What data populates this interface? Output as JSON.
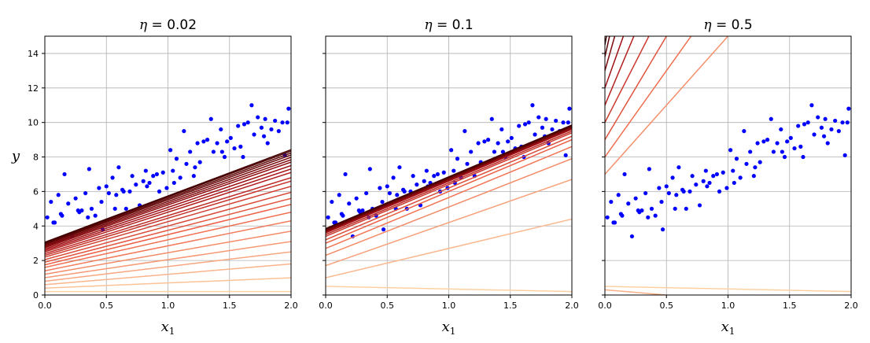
{
  "chart_data": [
    {
      "type": "scatter+line",
      "eta": 0.02,
      "title_symbol": "η",
      "title_value": "0.02",
      "xlabel_main": "x",
      "xlabel_sub": "1",
      "ylabel": "y",
      "xlim": [
        0,
        2
      ],
      "ylim": [
        0,
        15
      ],
      "xticks": [
        "0.0",
        "0.5",
        "1.0",
        "1.5",
        "2.0"
      ],
      "yticks": [
        "0",
        "2",
        "4",
        "6",
        "8",
        "10",
        "12",
        "14"
      ],
      "show_yticklabels": true,
      "lines": [
        {
          "intercept": 0.2,
          "slope": 0.0
        },
        {
          "intercept": 0.4,
          "slope": 0.3
        },
        {
          "intercept": 0.6,
          "slope": 0.6
        },
        {
          "intercept": 0.8,
          "slope": 0.85
        },
        {
          "intercept": 1.0,
          "slope": 1.05
        },
        {
          "intercept": 1.2,
          "slope": 1.25
        },
        {
          "intercept": 1.4,
          "slope": 1.45
        },
        {
          "intercept": 1.6,
          "slope": 1.6
        },
        {
          "intercept": 1.75,
          "slope": 1.75
        },
        {
          "intercept": 1.9,
          "slope": 1.85
        },
        {
          "intercept": 2.05,
          "slope": 1.95
        },
        {
          "intercept": 2.2,
          "slope": 2.05
        },
        {
          "intercept": 2.3,
          "slope": 2.15
        },
        {
          "intercept": 2.4,
          "slope": 2.2
        },
        {
          "intercept": 2.5,
          "slope": 2.3
        },
        {
          "intercept": 2.58,
          "slope": 2.36
        },
        {
          "intercept": 2.66,
          "slope": 2.42
        },
        {
          "intercept": 2.74,
          "slope": 2.48
        },
        {
          "intercept": 2.8,
          "slope": 2.52
        },
        {
          "intercept": 2.86,
          "slope": 2.56
        },
        {
          "intercept": 2.92,
          "slope": 2.6
        },
        {
          "intercept": 2.97,
          "slope": 2.63
        },
        {
          "intercept": 3.02,
          "slope": 2.66
        },
        {
          "intercept": 3.06,
          "slope": 2.68
        }
      ]
    },
    {
      "type": "scatter+line",
      "eta": 0.1,
      "title_symbol": "η",
      "title_value": "0.1",
      "xlabel_main": "x",
      "xlabel_sub": "1",
      "ylabel": "",
      "xlim": [
        0,
        2
      ],
      "ylim": [
        0,
        15
      ],
      "xticks": [
        "0.0",
        "0.5",
        "1.0",
        "1.5",
        "2.0"
      ],
      "yticks": [],
      "show_yticklabels": false,
      "lines": [
        {
          "intercept": 0.5,
          "slope": -0.15
        },
        {
          "intercept": 1.0,
          "slope": 1.7
        },
        {
          "intercept": 1.7,
          "slope": 2.5
        },
        {
          "intercept": 2.3,
          "slope": 2.8
        },
        {
          "intercept": 2.7,
          "slope": 2.95
        },
        {
          "intercept": 3.0,
          "slope": 3.0
        },
        {
          "intercept": 3.2,
          "slope": 3.0
        },
        {
          "intercept": 3.4,
          "slope": 3.0
        },
        {
          "intercept": 3.5,
          "slope": 3.0
        },
        {
          "intercept": 3.6,
          "slope": 3.0
        },
        {
          "intercept": 3.65,
          "slope": 3.0
        },
        {
          "intercept": 3.7,
          "slope": 3.0
        },
        {
          "intercept": 3.75,
          "slope": 3.0
        },
        {
          "intercept": 3.8,
          "slope": 3.0
        },
        {
          "intercept": 3.85,
          "slope": 3.0
        }
      ]
    },
    {
      "type": "scatter+line",
      "eta": 0.5,
      "title_symbol": "η",
      "title_value": "0.5",
      "xlabel_main": "x",
      "xlabel_sub": "1",
      "ylabel": "",
      "xlim": [
        0,
        2
      ],
      "ylim": [
        0,
        15
      ],
      "xticks": [
        "0.0",
        "0.5",
        "1.0",
        "1.5",
        "2.0"
      ],
      "yticks": [],
      "show_yticklabels": false,
      "lines": [
        {
          "intercept": 0.5,
          "slope": -0.15
        },
        {
          "intercept": 0.3,
          "slope": -0.6
        },
        {
          "intercept": 7.0,
          "slope": 8.0
        },
        {
          "intercept": 8.0,
          "slope": 10.0
        },
        {
          "intercept": 9.0,
          "slope": 12.0
        },
        {
          "intercept": 10.0,
          "slope": 14.0
        },
        {
          "intercept": 11.0,
          "slope": 17.0
        },
        {
          "intercept": 12.0,
          "slope": 20.0
        },
        {
          "intercept": 13.0,
          "slope": 25.0
        },
        {
          "intercept": 13.8,
          "slope": 32.0
        },
        {
          "intercept": 14.5,
          "slope": 40.0
        }
      ]
    }
  ],
  "scatter": {
    "color": "#0000ff",
    "x": [
      0.02,
      0.05,
      0.08,
      0.11,
      0.14,
      0.16,
      0.19,
      0.22,
      0.25,
      0.28,
      0.3,
      0.33,
      0.36,
      0.38,
      0.41,
      0.44,
      0.47,
      0.5,
      0.52,
      0.55,
      0.58,
      0.6,
      0.63,
      0.66,
      0.69,
      0.71,
      0.74,
      0.77,
      0.8,
      0.82,
      0.85,
      0.88,
      0.91,
      0.93,
      0.96,
      0.99,
      1.02,
      1.04,
      1.07,
      1.1,
      1.13,
      1.15,
      1.18,
      1.21,
      1.24,
      1.26,
      1.29,
      1.32,
      1.35,
      1.37,
      1.4,
      1.43,
      1.46,
      1.48,
      1.51,
      1.54,
      1.57,
      1.59,
      1.62,
      1.65,
      1.68,
      1.7,
      1.73,
      1.76,
      1.79,
      1.81,
      1.84,
      1.87,
      1.9,
      1.93,
      1.95,
      1.98,
      0.07,
      0.27,
      0.46,
      0.64,
      0.83,
      1.05,
      1.22,
      1.44,
      1.61,
      1.78,
      1.97,
      0.13,
      0.35,
      0.57
    ],
    "y": [
      4.5,
      5.4,
      4.2,
      5.8,
      4.6,
      7.0,
      5.3,
      3.4,
      5.6,
      4.8,
      4.9,
      5.9,
      7.3,
      5.0,
      4.6,
      6.2,
      3.8,
      6.3,
      5.9,
      6.8,
      5.8,
      7.4,
      6.1,
      5.0,
      6.0,
      6.9,
      6.4,
      5.2,
      6.6,
      7.2,
      6.5,
      6.9,
      7.0,
      6.0,
      7.1,
      6.2,
      8.4,
      7.2,
      7.9,
      6.8,
      9.5,
      7.6,
      8.3,
      6.9,
      8.8,
      7.7,
      8.9,
      9.0,
      10.2,
      8.3,
      8.8,
      9.6,
      8.0,
      8.9,
      9.1,
      8.5,
      9.8,
      8.6,
      9.9,
      10.0,
      11.0,
      9.3,
      10.3,
      9.7,
      10.2,
      8.8,
      9.6,
      10.1,
      9.5,
      10.0,
      8.1,
      10.8,
      4.2,
      4.9,
      5.4,
      6.0,
      6.3,
      6.5,
      7.4,
      8.3,
      8.0,
      9.2,
      10.0,
      4.7,
      4.5,
      5.0
    ]
  }
}
